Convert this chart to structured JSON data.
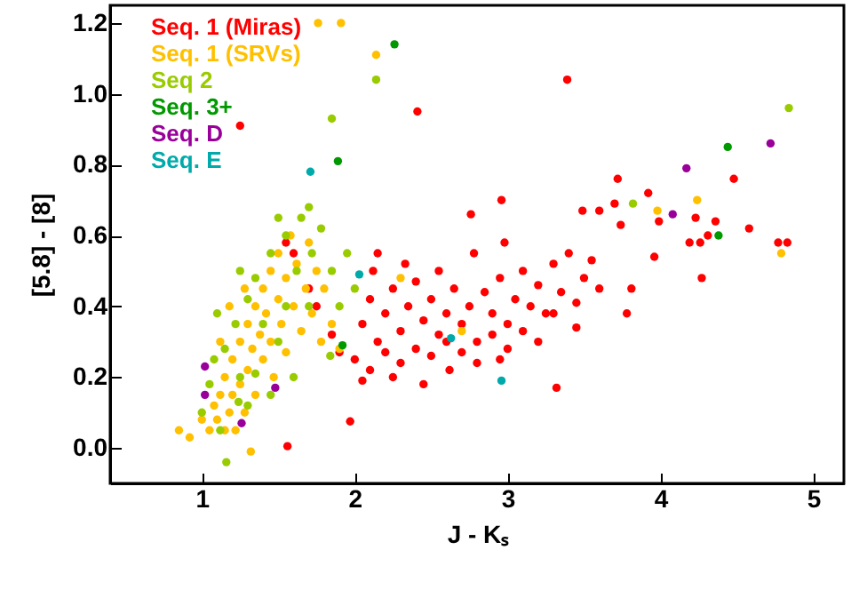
{
  "chart_data": {
    "type": "scatter",
    "xlabel": "J - Kₛ",
    "ylabel": "[5.8] - [8]",
    "xlim": [
      0.4,
      5.2
    ],
    "ylim": [
      -0.1,
      1.25
    ],
    "xticks": [
      1,
      2,
      3,
      4,
      5
    ],
    "yticks": [
      {
        "value": 0,
        "label": "0.0"
      },
      {
        "value": 0.2,
        "label": "0.2"
      },
      {
        "value": 0.4,
        "label": "0.4"
      },
      {
        "value": 0.6,
        "label": "0.6"
      },
      {
        "value": 0.8,
        "label": "0.8"
      },
      {
        "value": 1.0,
        "label": "1.0"
      },
      {
        "value": 1.2,
        "label": "1.2"
      }
    ],
    "grid": false,
    "legend": "top left",
    "marker": "circle",
    "series": [
      {
        "name": "Seq. 1 (Miras)",
        "color": "#ff0000",
        "x": [
          2.41,
          3.39,
          1.25,
          3.32,
          1.97,
          1.56,
          4.48,
          3.72,
          3.92,
          2.96,
          2.76,
          3.49,
          3.6,
          3.7,
          3.74,
          3.99,
          4.23,
          4.36,
          4.58,
          4.77,
          4.83,
          4.19,
          4.26,
          4.31,
          4.27,
          3.96,
          3.78,
          3.81,
          2.05,
          2.1,
          2.15,
          2.2,
          2.25,
          2.3,
          2.35,
          2.4,
          2.45,
          2.5,
          2.55,
          2.6,
          2.65,
          2.7,
          2.75,
          2.8,
          2.85,
          2.9,
          2.95,
          3.0,
          3.05,
          3.1,
          3.15,
          3.2,
          3.25,
          3.3,
          3.35,
          3.4,
          3.45,
          3.5,
          3.55,
          3.6,
          2.0,
          2.1,
          2.2,
          2.3,
          2.5,
          2.6,
          2.7,
          2.8,
          2.9,
          3.0,
          3.1,
          3.2,
          2.12,
          2.33,
          2.55,
          2.78,
          2.98,
          2.4,
          2.62,
          2.45,
          2.05,
          1.85,
          1.75,
          1.7,
          1.6,
          1.55,
          1.9,
          2.15,
          2.95,
          3.3,
          3.45,
          2.25
        ],
        "values": [
          0.95,
          1.04,
          0.91,
          0.17,
          0.075,
          0.005,
          0.76,
          0.76,
          0.72,
          0.7,
          0.66,
          0.67,
          0.67,
          0.69,
          0.63,
          0.64,
          0.65,
          0.64,
          0.62,
          0.58,
          0.58,
          0.58,
          0.58,
          0.6,
          0.48,
          0.54,
          0.38,
          0.45,
          0.35,
          0.42,
          0.3,
          0.38,
          0.45,
          0.33,
          0.4,
          0.28,
          0.36,
          0.42,
          0.32,
          0.38,
          0.45,
          0.35,
          0.4,
          0.3,
          0.44,
          0.38,
          0.48,
          0.35,
          0.42,
          0.5,
          0.4,
          0.46,
          0.38,
          0.52,
          0.44,
          0.55,
          0.41,
          0.48,
          0.53,
          0.45,
          0.25,
          0.22,
          0.27,
          0.24,
          0.26,
          0.3,
          0.27,
          0.24,
          0.32,
          0.28,
          0.33,
          0.3,
          0.5,
          0.52,
          0.5,
          0.55,
          0.58,
          0.47,
          0.22,
          0.18,
          0.19,
          0.32,
          0.4,
          0.45,
          0.55,
          0.58,
          0.27,
          0.55,
          0.25,
          0.38,
          0.34,
          0.2
        ]
      },
      {
        "name": "Seq. 1 (SRVs)",
        "color": "#ffc000",
        "x": [
          1.76,
          1.91,
          2.14,
          4.24,
          3.98,
          4.79,
          0.85,
          0.92,
          1.0,
          1.05,
          1.08,
          1.1,
          1.12,
          1.15,
          1.15,
          1.18,
          1.2,
          1.2,
          1.22,
          1.25,
          1.25,
          1.28,
          1.3,
          1.3,
          1.32,
          1.33,
          1.35,
          1.35,
          1.38,
          1.4,
          1.4,
          1.42,
          1.45,
          1.45,
          1.47,
          1.5,
          1.5,
          1.52,
          1.55,
          1.55,
          1.58,
          1.6,
          1.62,
          1.65,
          1.68,
          1.7,
          1.72,
          1.75,
          1.78,
          1.8,
          1.85,
          1.9,
          1.18,
          1.28,
          1.12,
          2.3,
          2.7
        ],
        "values": [
          1.2,
          1.2,
          1.11,
          0.7,
          0.67,
          0.55,
          0.05,
          0.03,
          0.08,
          0.05,
          0.12,
          0.08,
          0.15,
          0.05,
          0.2,
          0.1,
          0.25,
          0.15,
          0.05,
          0.3,
          0.18,
          0.1,
          0.35,
          0.22,
          -0.01,
          0.28,
          0.4,
          0.15,
          0.32,
          0.45,
          0.25,
          0.38,
          0.5,
          0.3,
          0.2,
          0.42,
          0.55,
          0.35,
          0.48,
          0.27,
          0.6,
          0.4,
          0.52,
          0.33,
          0.45,
          0.58,
          0.38,
          0.5,
          0.3,
          0.45,
          0.35,
          0.28,
          0.4,
          0.45,
          0.3,
          0.48,
          0.33
        ]
      },
      {
        "name": "Seq 2",
        "color": "#99cc00",
        "x": [
          2.14,
          1.85,
          4.84,
          3.82,
          1.0,
          1.05,
          1.08,
          1.12,
          1.15,
          1.24,
          1.22,
          1.25,
          1.3,
          1.3,
          1.35,
          1.35,
          1.4,
          1.45,
          1.45,
          1.5,
          1.55,
          1.55,
          1.6,
          1.62,
          1.65,
          1.7,
          1.72,
          1.78,
          1.84,
          1.85,
          1.9,
          1.95,
          2.0,
          1.16,
          1.1,
          1.25,
          1.5,
          1.7
        ],
        "values": [
          1.04,
          0.93,
          0.96,
          0.69,
          0.1,
          0.18,
          0.25,
          0.05,
          0.28,
          0.13,
          0.35,
          0.2,
          0.42,
          0.12,
          0.48,
          0.21,
          0.35,
          0.55,
          0.15,
          0.3,
          0.6,
          0.4,
          0.2,
          0.5,
          0.65,
          0.4,
          0.55,
          0.62,
          0.26,
          0.5,
          0.4,
          0.55,
          0.45,
          -0.04,
          0.38,
          0.5,
          0.65,
          0.68
        ]
      },
      {
        "name": "Seq. 3+",
        "color": "#009900",
        "x": [
          2.26,
          1.89,
          4.44,
          4.38,
          1.92
        ],
        "values": [
          1.14,
          0.81,
          0.85,
          0.6,
          0.29
        ]
      },
      {
        "name": "Seq. D",
        "color": "#990099",
        "x": [
          4.17,
          4.72,
          4.08,
          1.02,
          1.02,
          1.48,
          1.26
        ],
        "values": [
          0.79,
          0.86,
          0.66,
          0.23,
          0.15,
          0.17,
          0.07
        ]
      },
      {
        "name": "Seq. E",
        "color": "#00aaaa",
        "x": [
          1.71,
          2.96,
          2.63,
          2.03
        ],
        "values": [
          0.78,
          0.19,
          0.31,
          0.49
        ]
      }
    ]
  }
}
